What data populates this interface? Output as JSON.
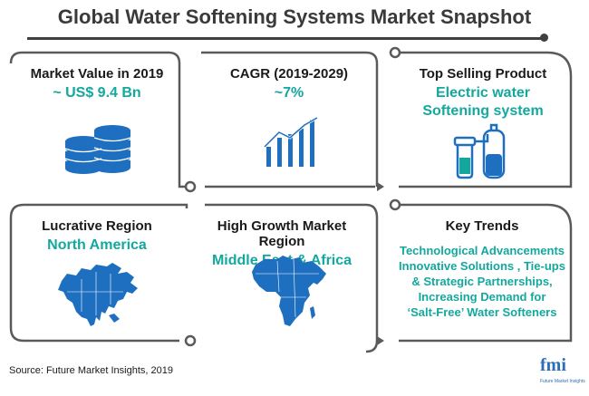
{
  "title": "Global Water Softening Systems Market Snapshot",
  "cards": [
    {
      "label": "Market Value in 2019",
      "value": "~ US$ 9.4 Bn",
      "icon": "coin-stack-icon"
    },
    {
      "label": "CAGR (2019-2029)",
      "value": "~7%",
      "icon": "growth-bar-chart-icon"
    },
    {
      "label": "Top Selling Product",
      "value_line1": "Electric water",
      "value_line2": "Softening system",
      "icon": "water-softener-icon"
    },
    {
      "label": "Lucrative Region",
      "value": "North America",
      "icon": "north-america-map-icon"
    },
    {
      "label": "High Growth Market Region",
      "value": "Middle East & Africa",
      "icon": "africa-map-icon"
    },
    {
      "label": "Key Trends",
      "trends": [
        "Technological Advancements",
        "Innovative Solutions , Tie-ups",
        "& Strategic Partnerships,",
        "Increasing Demand for",
        "‘Salt-Free’ Water Softeners"
      ]
    }
  ],
  "source": "Source: Future Market Insights, 2019",
  "logo": {
    "name": "fmi",
    "sub": "Future Market Insights"
  },
  "colors": {
    "accent": "#13a89e",
    "icon_blue": "#1f6fc1",
    "frame": "#555555"
  }
}
